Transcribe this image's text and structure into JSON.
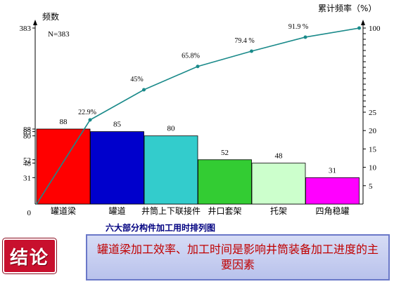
{
  "chart_data": {
    "type": "bar",
    "categories": [
      "罐道梁",
      "罐道",
      "井筒上下联接件",
      "井口套架",
      "托架",
      "四角稳罐"
    ],
    "values": [
      88,
      85,
      80,
      52,
      48,
      31
    ],
    "bar_colors": [
      "#ff0000",
      "#0000cc",
      "#33cccc",
      "#33cc33",
      "#ccffcc",
      "#ff00ff"
    ],
    "cumulative_percent": [
      22.9,
      45,
      65.8,
      79.4,
      91.9,
      100
    ],
    "cumulative_labels": [
      "22.9%",
      "45%",
      "65.8%",
      "79.4 %",
      "91.9 %",
      ""
    ],
    "line_color": "#1a8a8a",
    "n_label": "N=383",
    "left_axis": {
      "title": "频数",
      "ticks": [
        0,
        31,
        48,
        52,
        80,
        85,
        88,
        383
      ],
      "ylim": [
        0,
        383
      ]
    },
    "right_axis": {
      "title": "累计频率（%）",
      "ticks": [
        5,
        10,
        15,
        20,
        25,
        100
      ],
      "ylim": [
        0,
        100
      ]
    },
    "title": "六大部分构件加工用时排列图"
  },
  "conclusion": {
    "badge": "结论",
    "arrow": "…",
    "text": "罐道梁加工效率、加工时间是影响井筒装备加工进度的主要因素"
  }
}
